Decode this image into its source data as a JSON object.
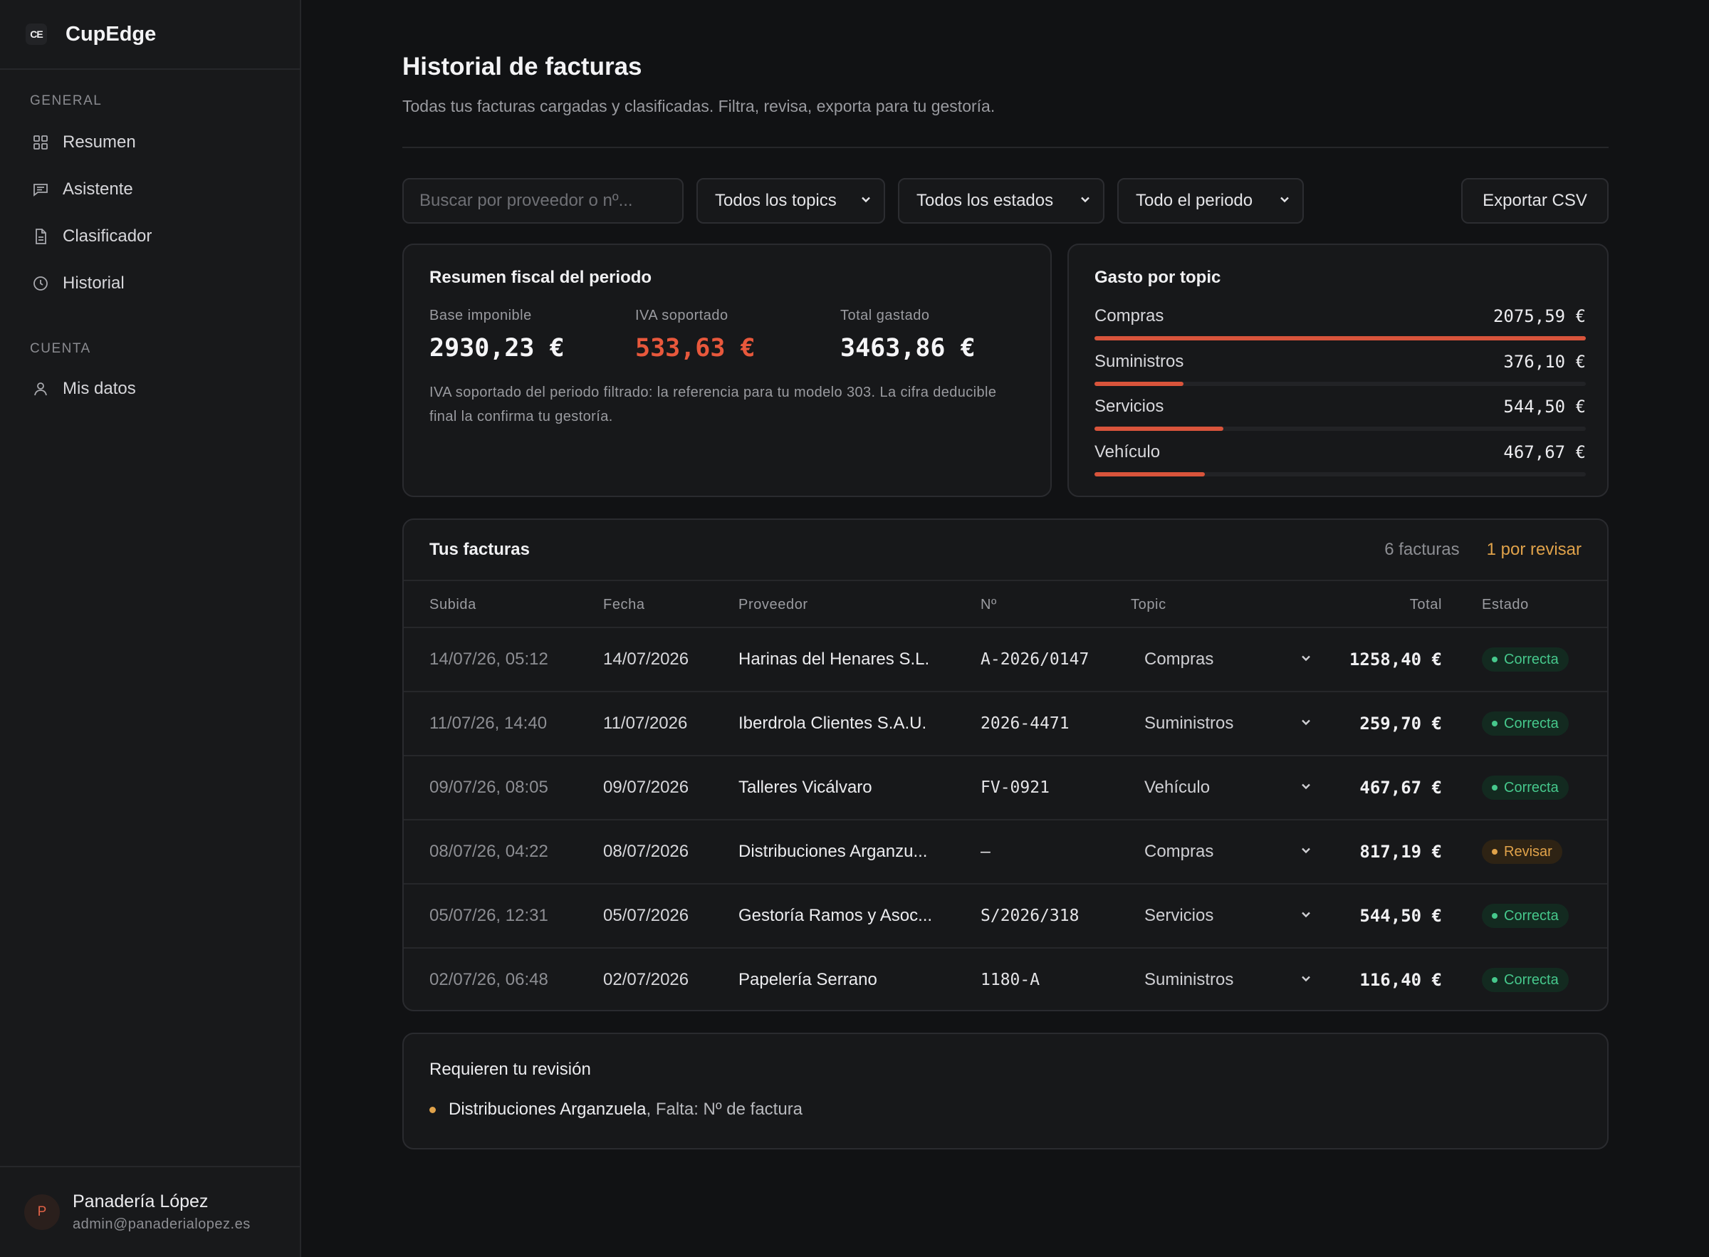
{
  "brand": {
    "logo": "CE",
    "name": "CupEdge"
  },
  "sidebar": {
    "sections": [
      {
        "title": "GENERAL",
        "items": [
          {
            "label": "Resumen",
            "icon": "grid-icon"
          },
          {
            "label": "Asistente",
            "icon": "chat-icon"
          },
          {
            "label": "Clasificador",
            "icon": "document-icon"
          },
          {
            "label": "Historial",
            "icon": "clock-icon"
          }
        ]
      },
      {
        "title": "CUENTA",
        "items": [
          {
            "label": "Mis datos",
            "icon": "user-icon"
          }
        ]
      }
    ],
    "user": {
      "initial": "P",
      "name": "Panadería López",
      "email": "admin@panaderialopez.es"
    }
  },
  "header": {
    "title": "Historial de facturas",
    "subtitle": "Todas tus facturas cargadas y clasificadas. Filtra, revisa, exporta para tu gestoría."
  },
  "filters": {
    "search_placeholder": "Buscar por proveedor o nº...",
    "topic": "Todos los topics",
    "status": "Todos los estados",
    "period": "Todo el periodo",
    "export_label": "Exportar CSV"
  },
  "summary": {
    "title": "Resumen fiscal del periodo",
    "base_label": "Base imponible",
    "base_value": "2930,23 €",
    "iva_label": "IVA soportado",
    "iva_value": "533,63 €",
    "total_label": "Total gastado",
    "total_value": "3463,86 €",
    "note": "IVA soportado del periodo filtrado: la referencia para tu modelo 303. La cifra deducible final la confirma tu gestoría.",
    "iva_color": "#e8583c"
  },
  "topics": {
    "title": "Gasto por topic",
    "items": [
      {
        "name": "Compras",
        "amount": "2075,59 €",
        "value": 2075.59
      },
      {
        "name": "Suministros",
        "amount": "376,10 €",
        "value": 376.1
      },
      {
        "name": "Servicios",
        "amount": "544,50 €",
        "value": 544.5
      },
      {
        "name": "Vehículo",
        "amount": "467,67 €",
        "value": 467.67
      }
    ],
    "bar_color": "#d9543b"
  },
  "invoices": {
    "title": "Tus facturas",
    "count": "6 facturas",
    "pending": "1 por revisar",
    "columns": [
      "Subida",
      "Fecha",
      "Proveedor",
      "Nº",
      "Topic",
      "Total",
      "Estado"
    ],
    "rows": [
      {
        "uploaded": "14/07/26, 05:12",
        "date": "14/07/2026",
        "provider": "Harinas del Henares S.L.",
        "number": "A-2026/0147",
        "topic": "Compras",
        "total": "1258,40 €",
        "status": "Correcta",
        "ok": true
      },
      {
        "uploaded": "11/07/26, 14:40",
        "date": "11/07/2026",
        "provider": "Iberdrola Clientes S.A.U.",
        "number": "2026-4471",
        "topic": "Suministros",
        "total": "259,70 €",
        "status": "Correcta",
        "ok": true
      },
      {
        "uploaded": "09/07/26, 08:05",
        "date": "09/07/2026",
        "provider": "Talleres Vicálvaro",
        "number": "FV-0921",
        "topic": "Vehículo",
        "total": "467,67 €",
        "status": "Correcta",
        "ok": true
      },
      {
        "uploaded": "08/07/26, 04:22",
        "date": "08/07/2026",
        "provider": "Distribuciones Arganzu...",
        "number": "—",
        "topic": "Compras",
        "total": "817,19 €",
        "status": "Revisar",
        "ok": false
      },
      {
        "uploaded": "05/07/26, 12:31",
        "date": "05/07/2026",
        "provider": "Gestoría Ramos y Asoc...",
        "number": "S/2026/318",
        "topic": "Servicios",
        "total": "544,50 €",
        "status": "Correcta",
        "ok": true
      },
      {
        "uploaded": "02/07/26, 06:48",
        "date": "02/07/2026",
        "provider": "Papelería Serrano",
        "number": "1180-A",
        "topic": "Suministros",
        "total": "116,40 €",
        "status": "Correcta",
        "ok": true
      }
    ]
  },
  "review": {
    "title": "Requieren tu revisión",
    "items": [
      {
        "provider": "Distribuciones Arganzuela",
        "reason": ", Falta: Nº de factura"
      }
    ]
  }
}
